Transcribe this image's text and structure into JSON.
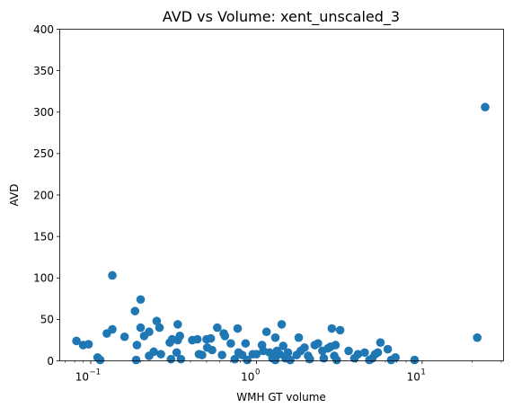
{
  "chart_data": {
    "type": "scatter",
    "title": "AVD vs Volume: xent_unscaled_3",
    "xlabel": "WMH GT volume",
    "ylabel": "AVD",
    "xscale": "log",
    "xlim": [
      0.065,
      31
    ],
    "ylim": [
      0,
      400
    ],
    "grid": false,
    "legend": "none",
    "marker_color": "#1f77b4",
    "x_ticks": [
      {
        "base": "10",
        "exp": "−1",
        "value": 0.1
      },
      {
        "base": "10",
        "exp": "0",
        "value": 1
      },
      {
        "base": "10",
        "exp": "1",
        "value": 10
      }
    ],
    "y_ticks": [
      "0",
      "50",
      "100",
      "150",
      "200",
      "250",
      "300",
      "350",
      "400"
    ],
    "points": [
      {
        "x": 0.082,
        "y": 24
      },
      {
        "x": 0.09,
        "y": 19
      },
      {
        "x": 0.097,
        "y": 20
      },
      {
        "x": 0.11,
        "y": 4
      },
      {
        "x": 0.114,
        "y": 1
      },
      {
        "x": 0.125,
        "y": 33
      },
      {
        "x": 0.135,
        "y": 38
      },
      {
        "x": 0.135,
        "y": 103
      },
      {
        "x": 0.16,
        "y": 29
      },
      {
        "x": 0.185,
        "y": 60
      },
      {
        "x": 0.19,
        "y": 19
      },
      {
        "x": 0.188,
        "y": 1
      },
      {
        "x": 0.2,
        "y": 74
      },
      {
        "x": 0.2,
        "y": 40
      },
      {
        "x": 0.21,
        "y": 30
      },
      {
        "x": 0.225,
        "y": 35
      },
      {
        "x": 0.225,
        "y": 6
      },
      {
        "x": 0.24,
        "y": 11
      },
      {
        "x": 0.25,
        "y": 48
      },
      {
        "x": 0.26,
        "y": 40
      },
      {
        "x": 0.265,
        "y": 8
      },
      {
        "x": 0.3,
        "y": 22
      },
      {
        "x": 0.305,
        "y": 2
      },
      {
        "x": 0.31,
        "y": 26
      },
      {
        "x": 0.33,
        "y": 10
      },
      {
        "x": 0.335,
        "y": 25
      },
      {
        "x": 0.335,
        "y": 44
      },
      {
        "x": 0.345,
        "y": 30
      },
      {
        "x": 0.35,
        "y": 2
      },
      {
        "x": 0.41,
        "y": 25
      },
      {
        "x": 0.44,
        "y": 26
      },
      {
        "x": 0.45,
        "y": 8
      },
      {
        "x": 0.47,
        "y": 7
      },
      {
        "x": 0.5,
        "y": 26
      },
      {
        "x": 0.505,
        "y": 16
      },
      {
        "x": 0.53,
        "y": 27
      },
      {
        "x": 0.54,
        "y": 13
      },
      {
        "x": 0.58,
        "y": 40
      },
      {
        "x": 0.62,
        "y": 7
      },
      {
        "x": 0.635,
        "y": 33
      },
      {
        "x": 0.645,
        "y": 30
      },
      {
        "x": 0.7,
        "y": 21
      },
      {
        "x": 0.74,
        "y": 2
      },
      {
        "x": 0.77,
        "y": 39
      },
      {
        "x": 0.78,
        "y": 10
      },
      {
        "x": 0.82,
        "y": 7
      },
      {
        "x": 0.86,
        "y": 21
      },
      {
        "x": 0.88,
        "y": 1
      },
      {
        "x": 0.95,
        "y": 8
      },
      {
        "x": 1.0,
        "y": 8
      },
      {
        "x": 1.08,
        "y": 19
      },
      {
        "x": 1.1,
        "y": 12
      },
      {
        "x": 1.15,
        "y": 35
      },
      {
        "x": 1.2,
        "y": 10
      },
      {
        "x": 1.25,
        "y": 3
      },
      {
        "x": 1.28,
        "y": 6
      },
      {
        "x": 1.3,
        "y": 28
      },
      {
        "x": 1.3,
        "y": 1
      },
      {
        "x": 1.33,
        "y": 12
      },
      {
        "x": 1.38,
        "y": 8
      },
      {
        "x": 1.42,
        "y": 44
      },
      {
        "x": 1.45,
        "y": 18
      },
      {
        "x": 1.5,
        "y": 3
      },
      {
        "x": 1.55,
        "y": 10
      },
      {
        "x": 1.6,
        "y": 1
      },
      {
        "x": 1.75,
        "y": 7
      },
      {
        "x": 1.8,
        "y": 28
      },
      {
        "x": 1.85,
        "y": 12
      },
      {
        "x": 1.95,
        "y": 16
      },
      {
        "x": 2.05,
        "y": 6
      },
      {
        "x": 2.1,
        "y": 2
      },
      {
        "x": 2.25,
        "y": 19
      },
      {
        "x": 2.35,
        "y": 21
      },
      {
        "x": 2.5,
        "y": 12
      },
      {
        "x": 2.55,
        "y": 3
      },
      {
        "x": 2.7,
        "y": 15
      },
      {
        "x": 2.8,
        "y": 17
      },
      {
        "x": 2.85,
        "y": 39
      },
      {
        "x": 2.95,
        "y": 6
      },
      {
        "x": 3.0,
        "y": 19
      },
      {
        "x": 3.05,
        "y": 1
      },
      {
        "x": 3.2,
        "y": 37
      },
      {
        "x": 3.6,
        "y": 12
      },
      {
        "x": 3.9,
        "y": 3
      },
      {
        "x": 4.1,
        "y": 8
      },
      {
        "x": 4.5,
        "y": 10
      },
      {
        "x": 4.8,
        "y": 1
      },
      {
        "x": 5.0,
        "y": 3
      },
      {
        "x": 5.2,
        "y": 8
      },
      {
        "x": 5.4,
        "y": 10
      },
      {
        "x": 5.6,
        "y": 22
      },
      {
        "x": 6.2,
        "y": 14
      },
      {
        "x": 6.5,
        "y": 1
      },
      {
        "x": 6.9,
        "y": 4
      },
      {
        "x": 9.0,
        "y": 1
      },
      {
        "x": 21.5,
        "y": 28
      },
      {
        "x": 24.0,
        "y": 306
      }
    ]
  }
}
